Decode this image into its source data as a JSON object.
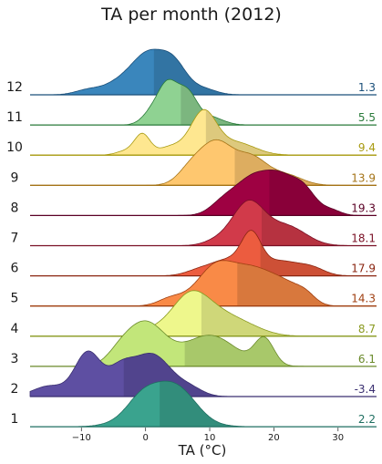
{
  "chart_data": {
    "type": "ridgeline",
    "title": "TA per month (2012)",
    "xlabel": "TA (°C)",
    "xlim": [
      -18,
      36
    ],
    "xticks": [
      -10,
      0,
      10,
      20,
      30
    ],
    "series": [
      {
        "name": "1",
        "mean": 2.2,
        "mean_label": "2.2",
        "color": "#3aa38e",
        "dark": "#1f6f61",
        "bumps": [
          [
            2.5,
            4,
            1.0
          ],
          [
            -1,
            2,
            0.18
          ],
          [
            6,
            2.5,
            0.25
          ]
        ]
      },
      {
        "name": "2",
        "mean": -3.4,
        "mean_label": "-3.4",
        "color": "#5e4fa2",
        "dark": "#3a2f70",
        "bumps": [
          [
            -9,
            2,
            0.75
          ],
          [
            1,
            3,
            0.72
          ],
          [
            -4,
            2,
            0.4
          ],
          [
            -15,
            2.5,
            0.18
          ],
          [
            7,
            2,
            0.12
          ]
        ]
      },
      {
        "name": "3",
        "mean": 6.1,
        "mean_label": "6.1",
        "color": "#c2e67a",
        "dark": "#6a8a2a",
        "bumps": [
          [
            0,
            3,
            0.9
          ],
          [
            10,
            4,
            0.65
          ],
          [
            18.5,
            1.5,
            0.55
          ],
          [
            -4,
            2,
            0.2
          ]
        ]
      },
      {
        "name": "4",
        "mean": 8.7,
        "mean_label": "8.7",
        "color": "#eef78c",
        "dark": "#8a9a20",
        "bumps": [
          [
            7,
            3,
            1.0
          ],
          [
            12,
            3,
            0.35
          ],
          [
            1,
            2,
            0.1
          ],
          [
            16,
            3,
            0.18
          ]
        ]
      },
      {
        "name": "5",
        "mean": 14.3,
        "mean_label": "14.3",
        "color": "#f98a47",
        "dark": "#a04012",
        "bumps": [
          [
            11,
            3,
            0.8
          ],
          [
            17,
            3,
            0.65
          ],
          [
            22,
            2.5,
            0.35
          ],
          [
            4,
            2,
            0.15
          ],
          [
            25,
            1.5,
            0.15
          ]
        ]
      },
      {
        "name": "6",
        "mean": 17.9,
        "mean_label": "17.9",
        "color": "#ec5c3f",
        "dark": "#8a2510",
        "bumps": [
          [
            16.5,
            1.5,
            0.9
          ],
          [
            13,
            3,
            0.45
          ],
          [
            21,
            3,
            0.4
          ],
          [
            26,
            2,
            0.18
          ],
          [
            8,
            2,
            0.1
          ]
        ]
      },
      {
        "name": "7",
        "mean": 18.1,
        "mean_label": "18.1",
        "color": "#d13a4a",
        "dark": "#7a1025",
        "bumps": [
          [
            16,
            2.5,
            1.0
          ],
          [
            22,
            3,
            0.45
          ],
          [
            11,
            2,
            0.1
          ]
        ]
      },
      {
        "name": "8",
        "mean": 19.3,
        "mean_label": "19.3",
        "color": "#9e0142",
        "dark": "#5a0025",
        "bumps": [
          [
            17,
            3,
            0.8
          ],
          [
            24.5,
            2,
            0.55
          ],
          [
            21,
            2,
            0.45
          ],
          [
            12,
            2,
            0.2
          ],
          [
            29,
            1.5,
            0.1
          ]
        ]
      },
      {
        "name": "9",
        "mean": 13.9,
        "mean_label": "13.9",
        "color": "#fec76f",
        "dark": "#a57418",
        "bumps": [
          [
            11,
            2.5,
            0.85
          ],
          [
            16.5,
            2.5,
            0.55
          ],
          [
            7,
            2,
            0.3
          ],
          [
            22,
            2.5,
            0.2
          ]
        ]
      },
      {
        "name": "10",
        "mean": 9.4,
        "mean_label": "9.4",
        "color": "#fee790",
        "dark": "#a89a10",
        "bumps": [
          [
            9,
            2,
            1.0
          ],
          [
            -0.5,
            1.2,
            0.48
          ],
          [
            14,
            3,
            0.3
          ],
          [
            4,
            2,
            0.2
          ],
          [
            -3,
            1.5,
            0.1
          ]
        ]
      },
      {
        "name": "11",
        "mean": 5.5,
        "mean_label": "5.5",
        "color": "#8fd292",
        "dark": "#2a7a3a",
        "bumps": [
          [
            3.5,
            1.5,
            0.95
          ],
          [
            6.5,
            1.5,
            0.75
          ],
          [
            1,
            1.5,
            0.3
          ],
          [
            10,
            2,
            0.2
          ]
        ]
      },
      {
        "name": "12",
        "mean": 1.3,
        "mean_label": "1.3",
        "color": "#3a86bc",
        "dark": "#1a4f7a",
        "bumps": [
          [
            0.5,
            2.5,
            1.0
          ],
          [
            4.5,
            2,
            0.7
          ],
          [
            -4,
            2.5,
            0.3
          ],
          [
            -9,
            2,
            0.12
          ],
          [
            9,
            2,
            0.15
          ]
        ]
      }
    ]
  }
}
